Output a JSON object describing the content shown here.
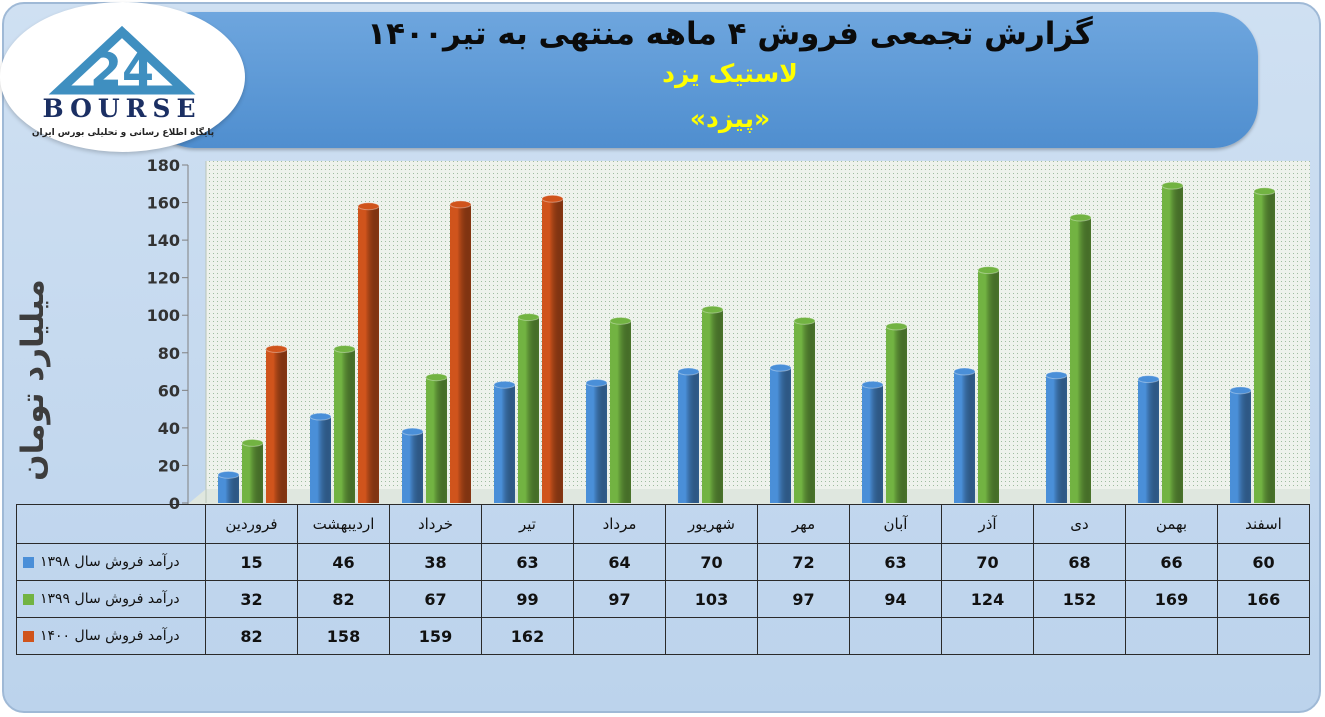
{
  "header": {
    "title": "گزارش تجمعی فروش ۴ ماهه منتهی به تیر۱۴۰۰",
    "company": "لاستیک یزد",
    "symbol": "«پیزد»"
  },
  "logo": {
    "word": "BOURSE",
    "mark": "24",
    "subtitle": "پایگاه اطلاع رسانی و تحلیلی بورس ایران"
  },
  "colors": {
    "s1398": "#4a8fd8",
    "s1399": "#72b342",
    "s1400": "#d0541c"
  },
  "chart_data": {
    "type": "bar",
    "ylabel": "میلیارد تومان",
    "ylim": [
      0,
      180
    ],
    "yticks": [
      0,
      20,
      40,
      60,
      80,
      100,
      120,
      140,
      160,
      180
    ],
    "categories": [
      "فروردین",
      "اردیبهشت",
      "خرداد",
      "تیر",
      "مرداد",
      "شهریور",
      "مهر",
      "آبان",
      "آذر",
      "دی",
      "بهمن",
      "اسفند"
    ],
    "series": [
      {
        "name": "درآمد فروش سال ۱۳۹۸",
        "values": [
          15,
          46,
          38,
          63,
          64,
          70,
          72,
          63,
          70,
          68,
          66,
          60
        ]
      },
      {
        "name": "درآمد فروش سال ۱۳۹۹",
        "values": [
          32,
          82,
          67,
          99,
          97,
          103,
          97,
          94,
          124,
          152,
          169,
          166
        ]
      },
      {
        "name": "درآمد فروش سال ۱۴۰۰",
        "values": [
          82,
          158,
          159,
          162,
          null,
          null,
          null,
          null,
          null,
          null,
          null,
          null
        ]
      }
    ],
    "legend": "table",
    "grid": false
  }
}
